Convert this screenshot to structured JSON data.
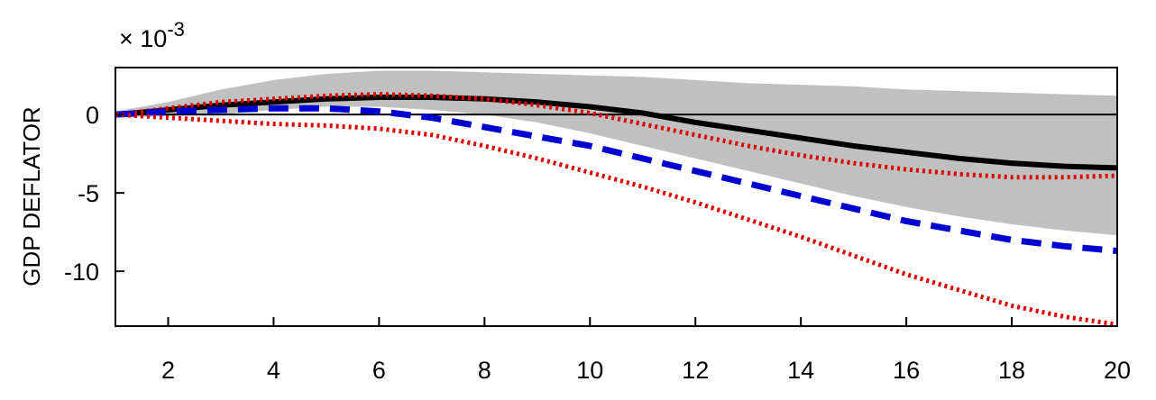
{
  "chart_data": {
    "type": "line",
    "ylabel": "GDP DEFLATOR",
    "y_multiplier": {
      "base": "× 10",
      "exponent": "-3"
    },
    "xlim": [
      1,
      20
    ],
    "ylim": [
      -13.5,
      3
    ],
    "xticks": [
      2,
      4,
      6,
      8,
      10,
      12,
      14,
      16,
      18,
      20
    ],
    "yticks": [
      0,
      -5,
      -10
    ],
    "grid": false,
    "band": {
      "color": "#c0c0c0",
      "x": [
        1,
        2,
        3,
        4,
        5,
        6,
        7,
        8,
        9,
        10,
        11,
        12,
        13,
        14,
        15,
        16,
        17,
        18,
        19,
        20
      ],
      "upper": [
        0.2,
        0.8,
        1.6,
        2.2,
        2.6,
        2.8,
        2.8,
        2.7,
        2.6,
        2.5,
        2.4,
        2.2,
        2.0,
        1.9,
        1.8,
        1.6,
        1.5,
        1.4,
        1.3,
        1.2
      ],
      "lower": [
        -0.2,
        -0.1,
        0.0,
        0.3,
        0.5,
        0.5,
        0.3,
        0.0,
        -0.5,
        -1.2,
        -2.0,
        -2.8,
        -3.6,
        -4.4,
        -5.2,
        -5.9,
        -6.5,
        -7.0,
        -7.4,
        -7.7
      ]
    },
    "series": [
      {
        "color": "#000000",
        "style": "solid",
        "width": 6,
        "x": [
          1,
          2,
          3,
          4,
          5,
          6,
          7,
          8,
          9,
          10,
          11,
          12,
          13,
          14,
          15,
          16,
          17,
          18,
          19,
          20
        ],
        "y": [
          0.0,
          0.3,
          0.6,
          0.8,
          1.0,
          1.1,
          1.1,
          1.0,
          0.8,
          0.5,
          0.1,
          -0.5,
          -1.0,
          -1.5,
          -2.0,
          -2.4,
          -2.8,
          -3.1,
          -3.3,
          -3.4
        ]
      },
      {
        "color": "#e00000",
        "style": "dotted",
        "width": 5,
        "x": [
          1,
          2,
          3,
          4,
          5,
          6,
          7,
          8,
          9,
          10,
          11,
          12,
          13,
          14,
          15,
          16,
          17,
          18,
          19,
          20
        ],
        "y": [
          0.0,
          0.4,
          0.8,
          1.0,
          1.2,
          1.3,
          1.2,
          1.0,
          0.6,
          0.1,
          -0.6,
          -1.3,
          -2.0,
          -2.6,
          -3.1,
          -3.5,
          -3.8,
          -4.0,
          -4.0,
          -3.9
        ]
      },
      {
        "color": "#0000d0",
        "style": "dashed",
        "width": 7,
        "x": [
          1,
          2,
          3,
          4,
          5,
          6,
          7,
          8,
          9,
          10,
          11,
          12,
          13,
          14,
          15,
          16,
          17,
          18,
          19,
          20
        ],
        "y": [
          0.0,
          0.2,
          0.3,
          0.4,
          0.4,
          0.2,
          -0.2,
          -0.8,
          -1.4,
          -2.0,
          -2.8,
          -3.6,
          -4.4,
          -5.2,
          -6.0,
          -6.8,
          -7.4,
          -8.0,
          -8.4,
          -8.7
        ]
      },
      {
        "color": "#e00000",
        "style": "dotted",
        "width": 5,
        "x": [
          1,
          2,
          3,
          4,
          5,
          6,
          7,
          8,
          9,
          10,
          11,
          12,
          13,
          14,
          15,
          16,
          17,
          18,
          19,
          20
        ],
        "y": [
          0.0,
          -0.2,
          -0.4,
          -0.6,
          -0.7,
          -0.9,
          -1.3,
          -2.0,
          -2.8,
          -3.7,
          -4.6,
          -5.6,
          -6.7,
          -7.8,
          -9.0,
          -10.2,
          -11.2,
          -12.2,
          -12.9,
          -13.4
        ]
      }
    ],
    "zero_line": {
      "y": 0,
      "color": "#000000"
    }
  }
}
